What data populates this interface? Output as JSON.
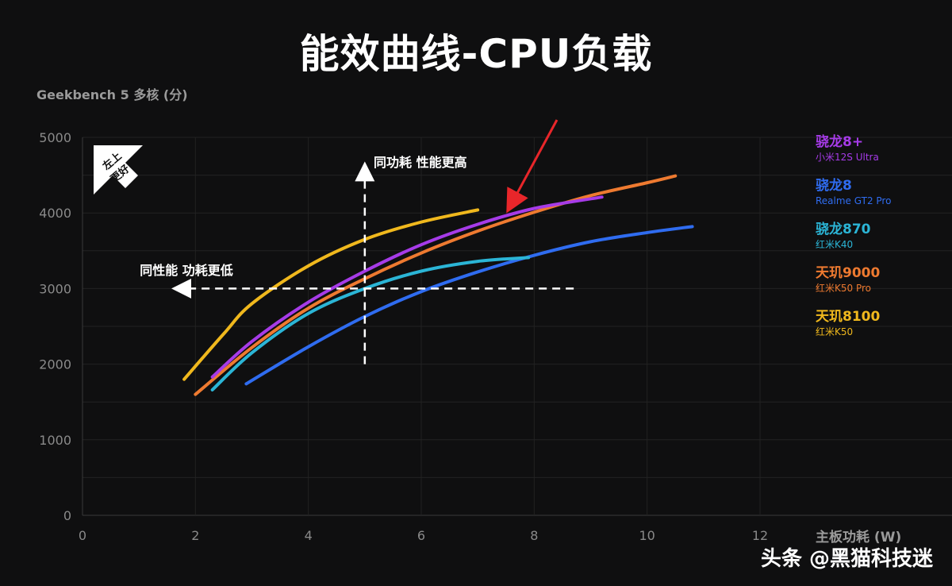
{
  "title": "能效曲线-CPU负载",
  "watermark": "头条 @黑猫科技迷",
  "annotations": {
    "badge": "左上\n更好",
    "vertical_arrow": "同功耗 性能更高",
    "horizontal_arrow": "同性能 功耗更低"
  },
  "chart_data": {
    "type": "line",
    "title": "能效曲线-CPU负载",
    "xlabel": "主板功耗 (W)",
    "ylabel": "Geekbench 5 多核 (分)",
    "xlim": [
      0,
      12
    ],
    "ylim": [
      0,
      5000
    ],
    "x_ticks": [
      "0",
      "2",
      "4",
      "6",
      "8",
      "10",
      "12"
    ],
    "y_ticks": [
      "0",
      "1000",
      "2000",
      "3000",
      "4000",
      "5000"
    ],
    "grid": true,
    "legend_position": "right",
    "series": [
      {
        "name": "骁龙8+",
        "device": "小米12S Ultra",
        "color": "#a63be8",
        "points": [
          [
            2.3,
            1830
          ],
          [
            3.0,
            2300
          ],
          [
            4.0,
            2820
          ],
          [
            5.0,
            3230
          ],
          [
            6.0,
            3580
          ],
          [
            7.0,
            3850
          ],
          [
            8.0,
            4060
          ],
          [
            9.2,
            4210
          ]
        ]
      },
      {
        "name": "骁龙8",
        "device": "Realme GT2 Pro",
        "color": "#2f6cf0",
        "points": [
          [
            2.9,
            1740
          ],
          [
            4.0,
            2230
          ],
          [
            5.0,
            2630
          ],
          [
            6.0,
            2960
          ],
          [
            7.0,
            3220
          ],
          [
            8.0,
            3440
          ],
          [
            9.0,
            3620
          ],
          [
            10.0,
            3740
          ],
          [
            10.8,
            3820
          ]
        ]
      },
      {
        "name": "骁龙870",
        "device": "红米K40",
        "color": "#2bb5d6",
        "points": [
          [
            2.3,
            1660
          ],
          [
            3.0,
            2150
          ],
          [
            4.0,
            2670
          ],
          [
            5.0,
            3000
          ],
          [
            6.0,
            3230
          ],
          [
            7.0,
            3360
          ],
          [
            7.9,
            3410
          ]
        ]
      },
      {
        "name": "天玑9000",
        "device": "红米K50 Pro",
        "color": "#ee7a30",
        "points": [
          [
            2.0,
            1600
          ],
          [
            3.0,
            2220
          ],
          [
            4.0,
            2740
          ],
          [
            5.0,
            3130
          ],
          [
            6.0,
            3470
          ],
          [
            7.0,
            3760
          ],
          [
            8.0,
            4010
          ],
          [
            9.0,
            4230
          ],
          [
            10.0,
            4400
          ],
          [
            10.5,
            4490
          ]
        ]
      },
      {
        "name": "天玑8100",
        "device": "红米K50",
        "color": "#f0b81d",
        "points": [
          [
            1.8,
            1800
          ],
          [
            2.5,
            2400
          ],
          [
            3.0,
            2800
          ],
          [
            4.0,
            3300
          ],
          [
            5.0,
            3650
          ],
          [
            6.0,
            3880
          ],
          [
            7.0,
            4040
          ]
        ]
      }
    ]
  }
}
